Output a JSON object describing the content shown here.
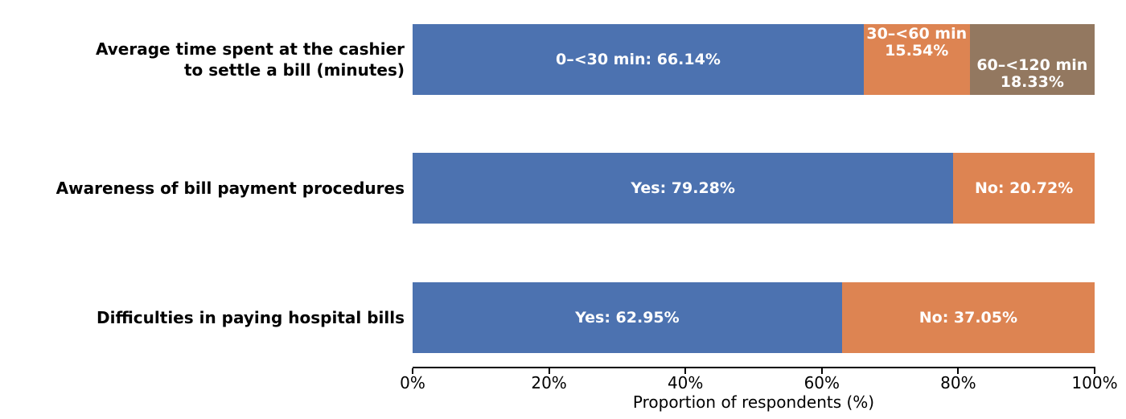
{
  "chart_data": {
    "type": "bar",
    "orientation": "horizontal",
    "stacked": true,
    "title": "",
    "xlabel": "Proportion of respondents (%)",
    "ylabel": "",
    "xlim": [
      0,
      100
    ],
    "grid": false,
    "legend": "none",
    "x_ticks": [
      {
        "value": 0,
        "label": "0%"
      },
      {
        "value": 20,
        "label": "20%"
      },
      {
        "value": 40,
        "label": "40%"
      },
      {
        "value": 60,
        "label": "60%"
      },
      {
        "value": 80,
        "label": "80%"
      },
      {
        "value": 100,
        "label": "100%"
      }
    ],
    "colors": {
      "blue": "#4c72b0",
      "orange": "#dd8452",
      "brown": "#937860",
      "bar_label_text": "#ffffff",
      "axis_text": "#000000"
    },
    "rows": [
      {
        "category": "Average time spent at the cashier to settle a bill (minutes)",
        "category_lines": [
          "Average time spent at the cashier",
          "to settle a bill (minutes)"
        ],
        "segments": [
          {
            "name": "0–<30 min",
            "value": 66.14,
            "label": "0–<30 min: 66.14%",
            "color": "#4c72b0",
            "label_pos": "center"
          },
          {
            "name": "30–<60 min",
            "value": 15.54,
            "label": "30–<60 min\n15.54%",
            "color": "#dd8452",
            "label_pos": "top"
          },
          {
            "name": "60–<120 min",
            "value": 18.33,
            "label": "60–<120 min\n18.33%",
            "color": "#937860",
            "label_pos": "bottom"
          }
        ]
      },
      {
        "category": "Awareness of bill payment procedures",
        "category_lines": [
          "Awareness of bill payment procedures"
        ],
        "segments": [
          {
            "name": "Yes",
            "value": 79.28,
            "label": "Yes: 79.28%",
            "color": "#4c72b0",
            "label_pos": "center"
          },
          {
            "name": "No",
            "value": 20.72,
            "label": "No: 20.72%",
            "color": "#dd8452",
            "label_pos": "center"
          }
        ]
      },
      {
        "category": "Difficulties in paying hospital bills",
        "category_lines": [
          "Difficulties in paying hospital bills"
        ],
        "segments": [
          {
            "name": "Yes",
            "value": 62.95,
            "label": "Yes: 62.95%",
            "color": "#4c72b0",
            "label_pos": "center"
          },
          {
            "name": "No",
            "value": 37.05,
            "label": "No: 37.05%",
            "color": "#dd8452",
            "label_pos": "center"
          }
        ]
      }
    ]
  }
}
